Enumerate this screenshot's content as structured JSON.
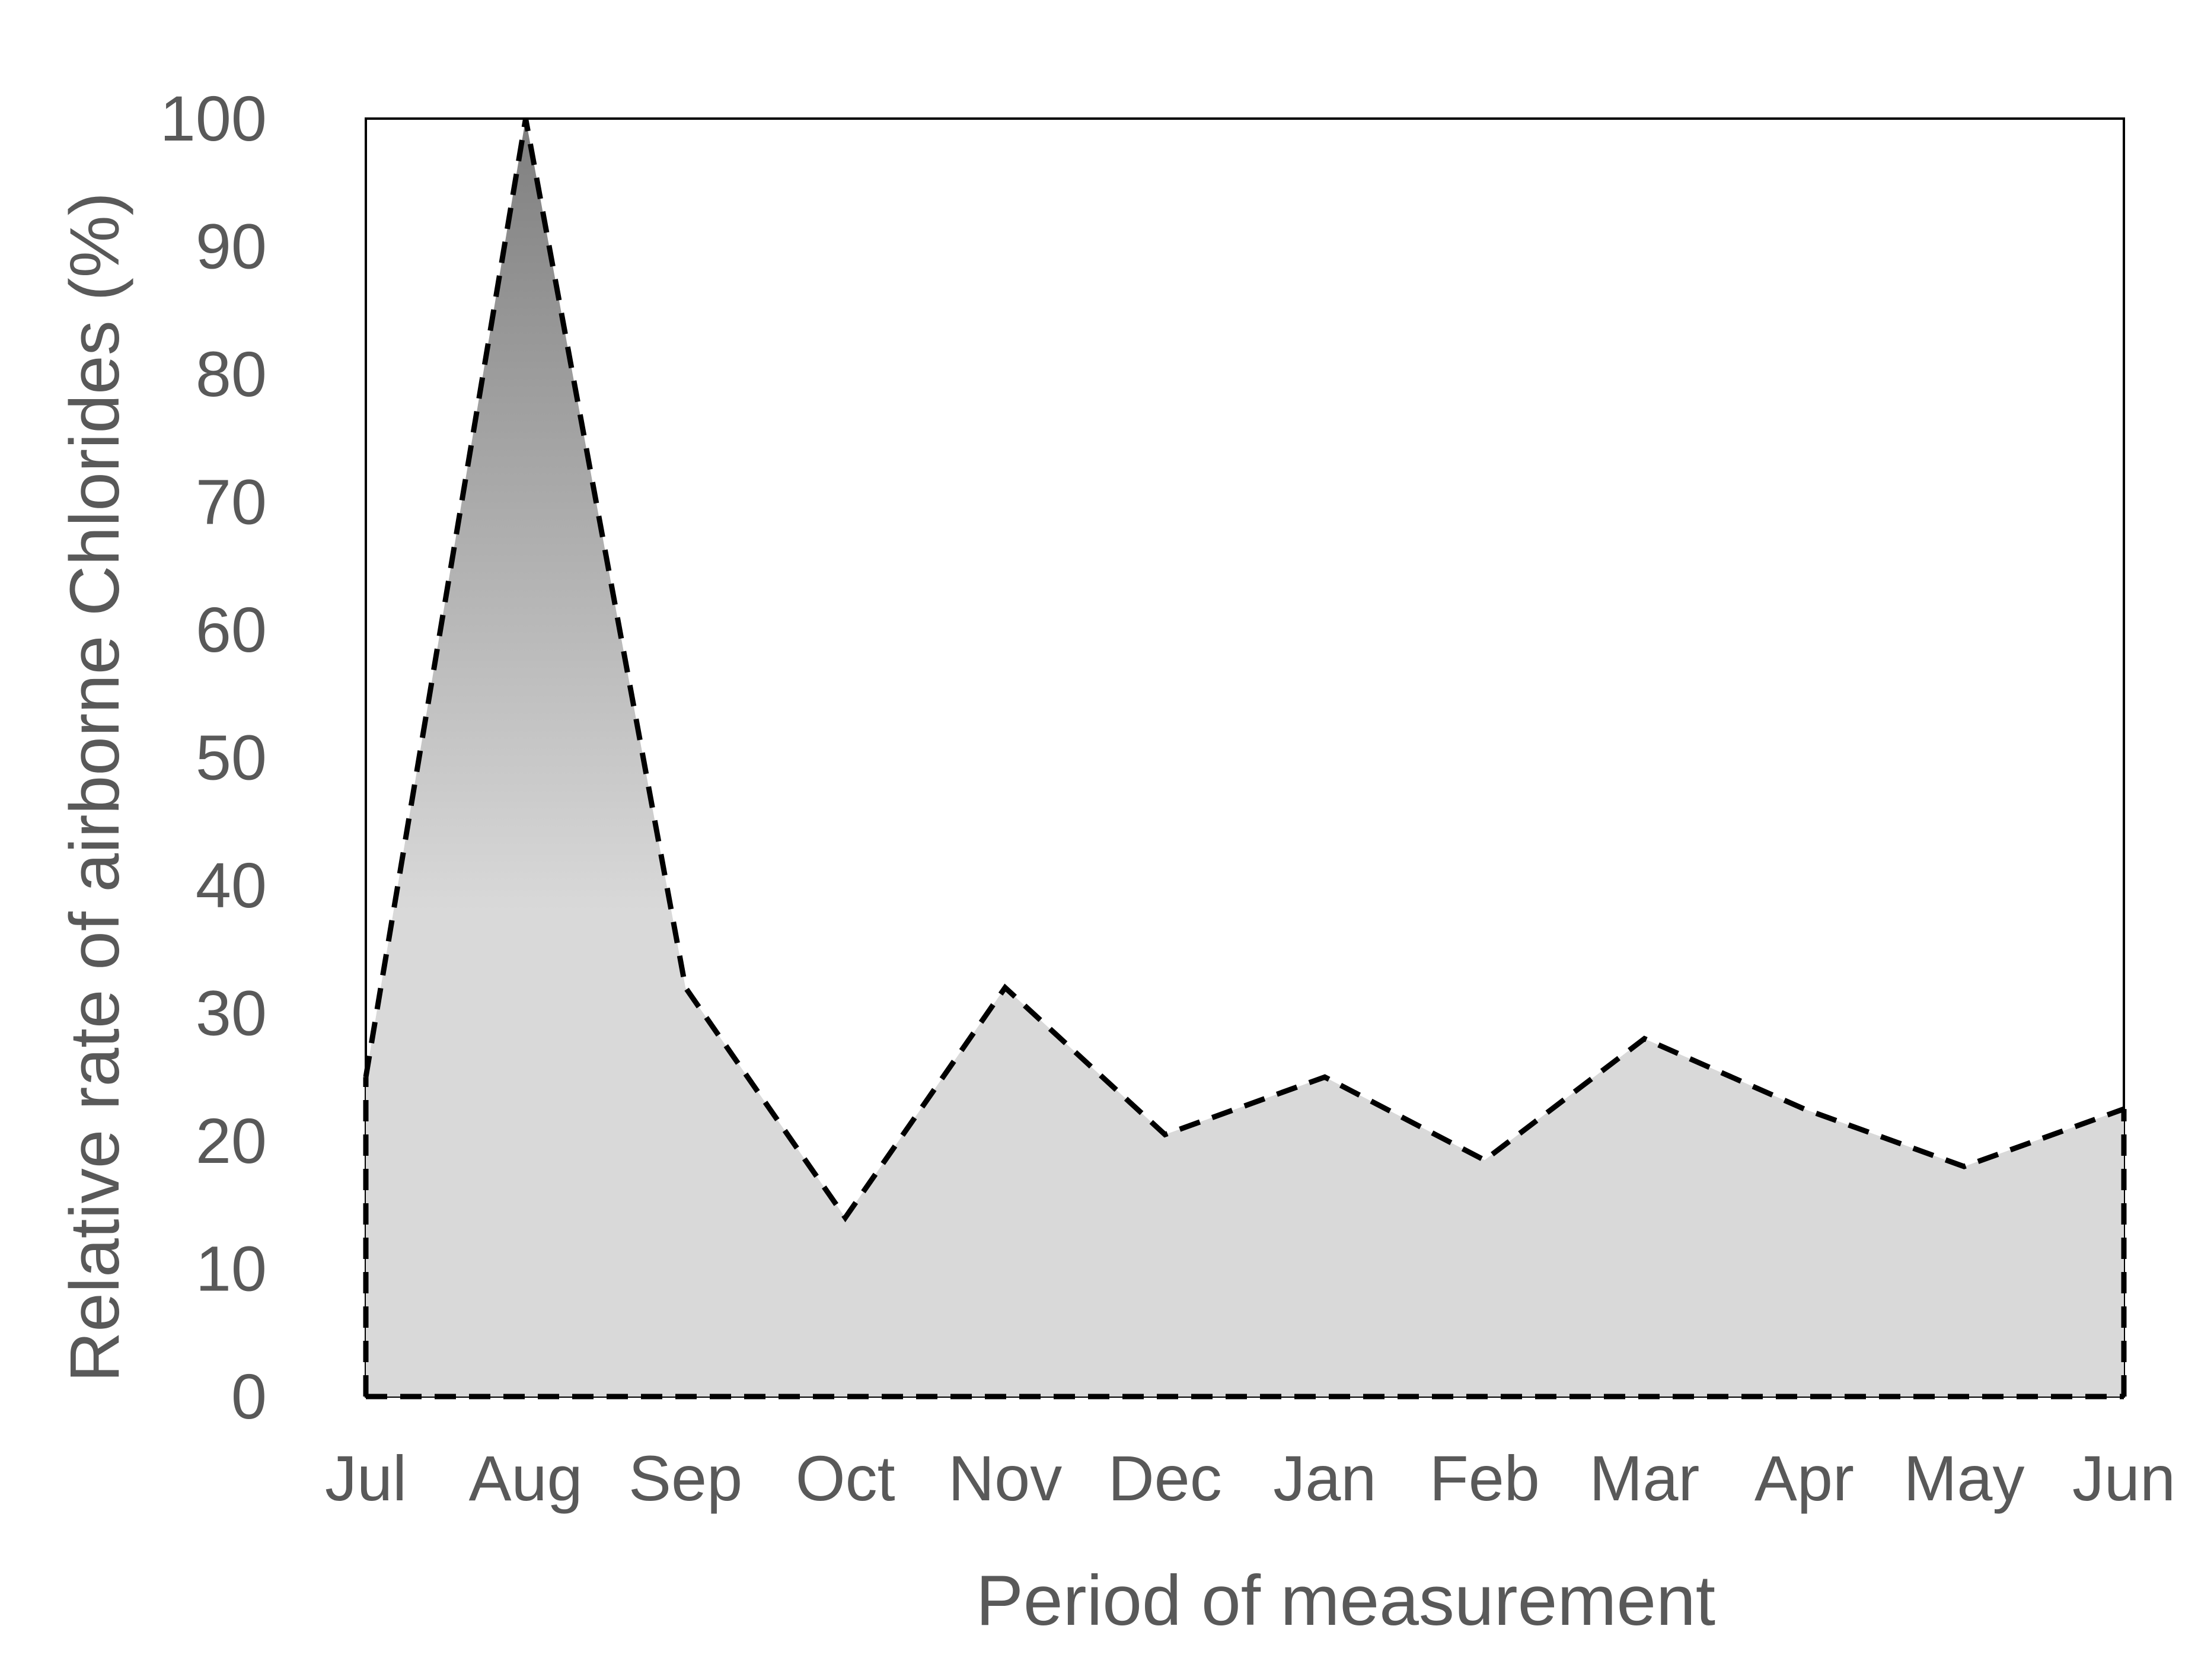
{
  "chart_data": {
    "type": "area",
    "xlabel": "Period of measurement",
    "ylabel": "Relative rate of airborne Chlorides (%)",
    "categories": [
      "Jul",
      "Aug",
      "Sep",
      "Oct",
      "Nov",
      "Dec",
      "Jan",
      "Feb",
      "Mar",
      "Apr",
      "May",
      "Jun"
    ],
    "values": [
      25,
      100,
      32,
      14,
      32,
      20.5,
      25,
      18.5,
      28,
      22.5,
      18,
      22.5
    ],
    "ylim": [
      0,
      100
    ],
    "yticks": [
      0,
      10,
      20,
      30,
      40,
      50,
      60,
      70,
      80,
      90,
      100
    ],
    "grid": false,
    "legend": "none",
    "line_style": "dashed",
    "colors": {
      "fill_top": "#7f7f7f",
      "fill_bottom": "#d9d9d9",
      "line": "#000000",
      "frame": "#000000",
      "text": "#595959"
    }
  }
}
